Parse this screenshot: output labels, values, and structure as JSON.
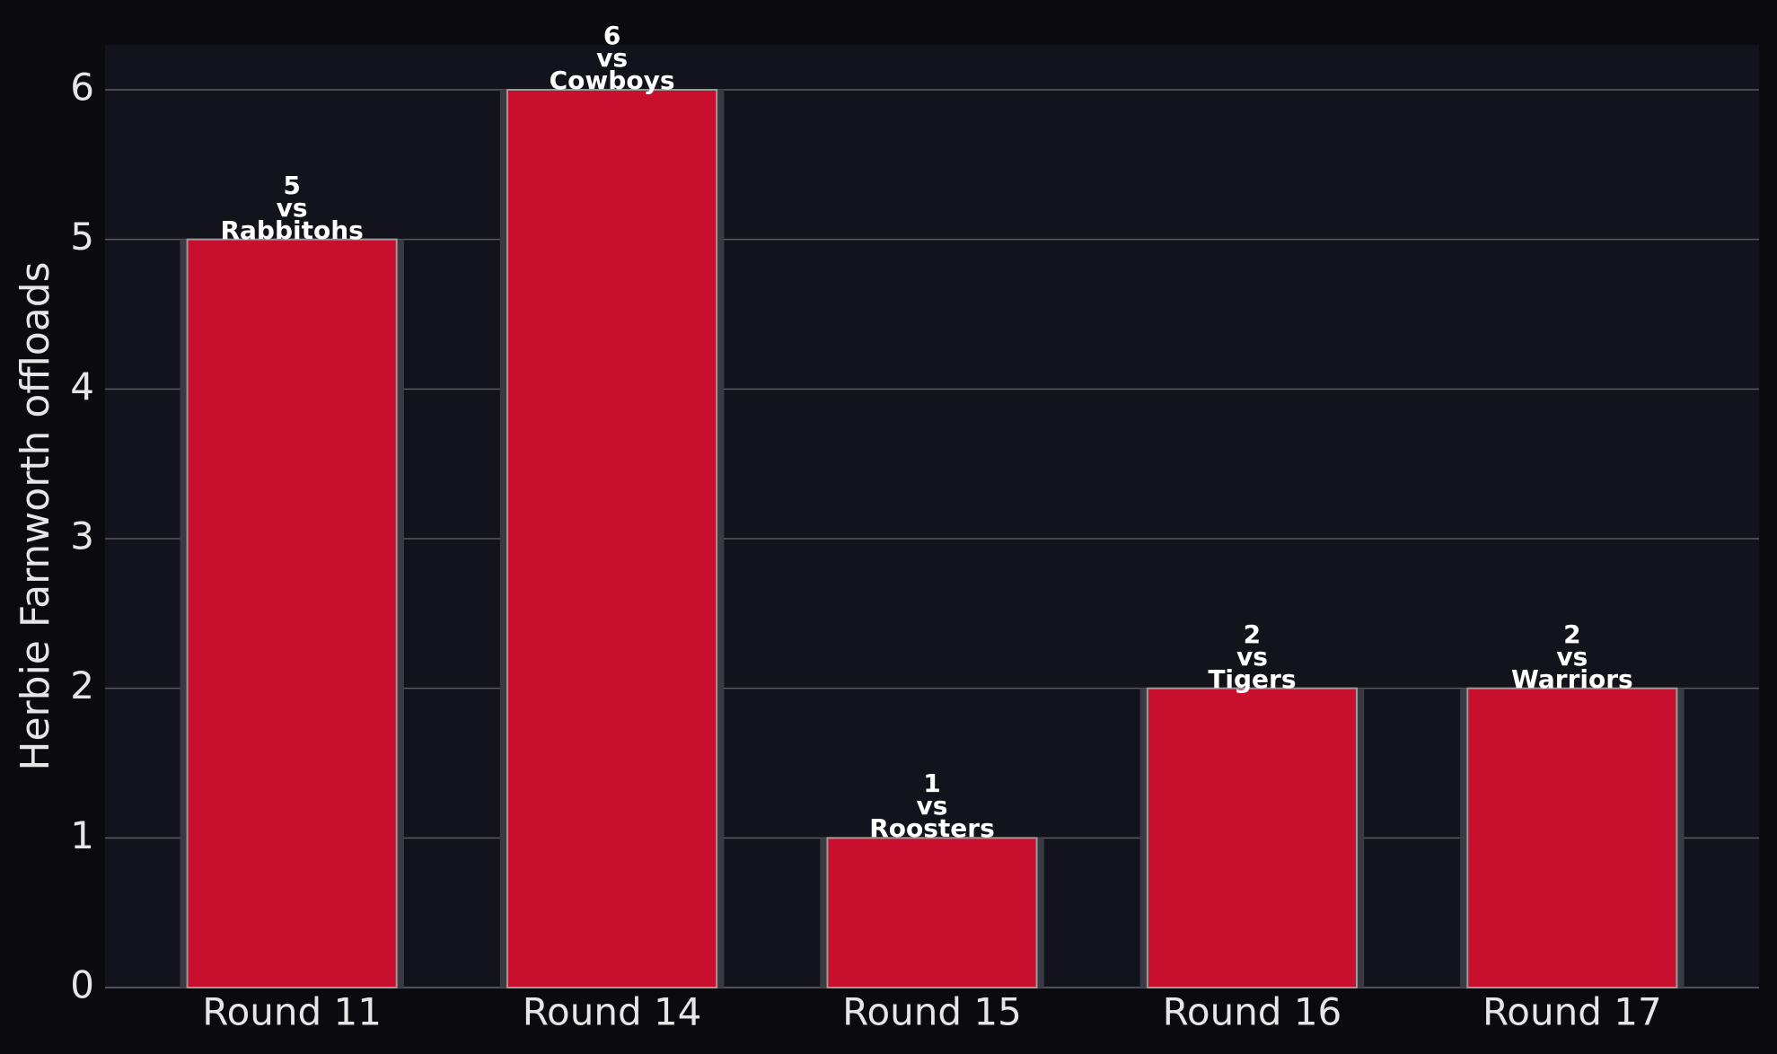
{
  "chart_data": {
    "type": "bar",
    "y_label": "Herbie Farnworth offloads",
    "categories": [
      "Round 11",
      "Round 14",
      "Round 15",
      "Round 16",
      "Round 17"
    ],
    "values": [
      5,
      6,
      1,
      2,
      2
    ],
    "value_labels": [
      "5\nvs\nRabbitohs",
      "6\nvs\nCowboys",
      "1\nvs\nRoosters",
      "2\nvs\nTigers",
      "2\nvs\nWarriors"
    ],
    "color": "#c8102e",
    "ylim": [
      0,
      6.3
    ],
    "yticks": [
      0,
      1,
      2,
      3,
      4,
      5,
      6
    ],
    "grid": true
  }
}
